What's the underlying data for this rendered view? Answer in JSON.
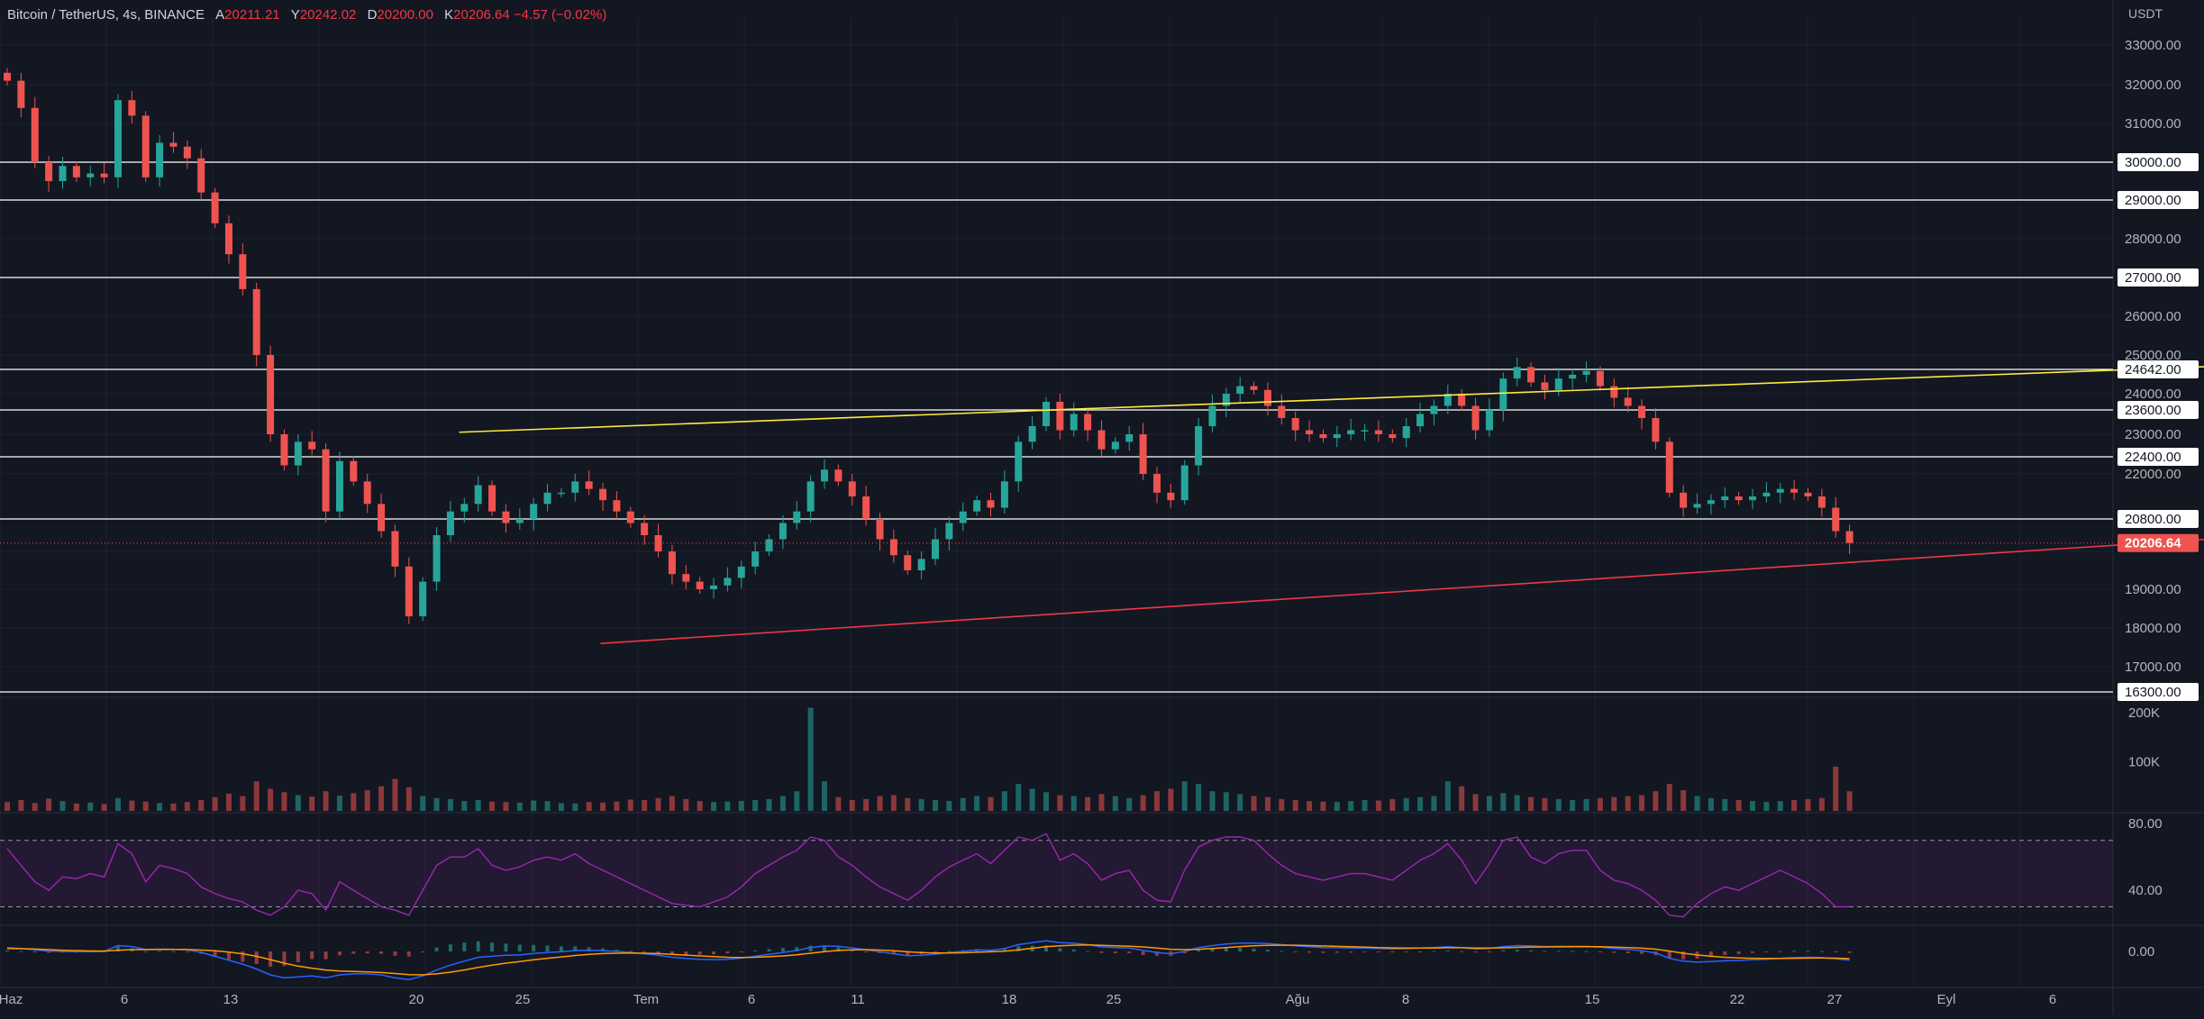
{
  "header": {
    "symbol": "Bitcoin / TetherUS, 4s, BINANCE",
    "open_label": "A",
    "open": "20211.21",
    "high_label": "Y",
    "high": "20242.02",
    "low_label": "D",
    "low": "20200.00",
    "close_label": "K",
    "close": "20206.64",
    "change": "−4.57 (−0.02%)"
  },
  "colors": {
    "background": "#131722",
    "grid": "#1e222d",
    "text": "#b2b5be",
    "up": "#26a69a",
    "down": "#ef5350",
    "resistance_line": "#ffeb3b",
    "support_line": "#f23645",
    "horizontal_level": "#ffffff",
    "rsi": "#9c27b0",
    "macd": "#2962ff",
    "signal": "#ff9800"
  },
  "chart_data": [
    {
      "type": "candlestick",
      "currency_label": "USDT",
      "y_ticks": [
        "33000.00",
        "32000.00",
        "31000.00",
        "30000.00",
        "29000.00",
        "28000.00",
        "27000.00",
        "26000.00",
        "25000.00",
        "24642.00",
        "24000.00",
        "23600.00",
        "23000.00",
        "22400.00",
        "22000.00",
        "20800.00",
        "20206.64",
        "19000.00",
        "18000.00",
        "17000.00",
        "16300.00"
      ],
      "ylim": [
        16300,
        33300
      ],
      "x_ticks": [
        "Haz",
        "6",
        "13",
        "20",
        "25",
        "Tem",
        "6",
        "11",
        "18",
        "25",
        "Ağu",
        "8",
        "15",
        "22",
        "27",
        "Eyl",
        "6"
      ],
      "horizontal_levels": [
        30000,
        29000,
        27000,
        24642,
        23600,
        22400,
        20800,
        16300
      ],
      "boxed_labels": [
        "30000.00",
        "29000.00",
        "27000.00",
        "24642.00",
        "23600.00",
        "22400.00",
        "20800.00",
        "16300.00"
      ],
      "last_price": {
        "value": 20206.64,
        "label": "20206.64"
      },
      "trendlines": [
        {
          "name": "resistance",
          "from": {
            "x": "14 Haz",
            "y": 23050
          },
          "to": {
            "x": "23 Ağu",
            "y": 25400
          }
        },
        {
          "name": "support",
          "from": {
            "x": "18 Haz",
            "y": 17600
          },
          "to": {
            "x": "31 Ağu",
            "y": 22000
          }
        }
      ],
      "series": [
        {
          "values": [
            32100,
            31400,
            30000,
            29500,
            29900,
            29600,
            29700,
            29600,
            31600,
            31200,
            29600,
            30500,
            30400,
            30100,
            29200,
            28400,
            27600,
            26700,
            25000,
            23000,
            22200,
            22800,
            22600,
            21000,
            22300,
            21800,
            21200,
            20500,
            19600,
            18300,
            19200,
            20400,
            21000,
            21200,
            21700,
            21000,
            20700,
            20800,
            21200,
            21500,
            21500,
            21800,
            21600,
            21300,
            21000,
            20700,
            20400,
            20000,
            19400,
            19200,
            19000,
            19100,
            19300,
            19600,
            20000,
            20300,
            20700,
            21000,
            21800,
            22100,
            21800,
            21400,
            20800,
            20300,
            19900,
            19500,
            19800,
            20300,
            20700,
            21000,
            21300,
            21100,
            21800,
            22800,
            23200,
            23800,
            23100,
            23500,
            23100,
            22600,
            22800,
            23000,
            22000,
            21500,
            21300,
            22200,
            23200,
            23700,
            24000,
            24200,
            24100,
            23700,
            23400,
            23100,
            23000,
            22900,
            23000,
            23100,
            23100,
            23000,
            22900,
            23200,
            23500,
            23700,
            24000,
            23700,
            23100,
            23600,
            24400,
            24700,
            24300,
            24100,
            24400,
            24500,
            24600,
            24200,
            23900,
            23700,
            23400,
            22800,
            21500,
            21100,
            21200,
            21300,
            21400,
            21300,
            21400,
            21500,
            21600,
            21500,
            21400,
            21100,
            20500,
            20206
          ]
        }
      ]
    },
    {
      "type": "bar",
      "name": "volume",
      "y_ticks": [
        "200K",
        "100K"
      ],
      "ylim": [
        0,
        220000
      ],
      "values": [
        18000,
        22000,
        16000,
        25000,
        20000,
        15000,
        17000,
        14000,
        26000,
        21000,
        19000,
        16000,
        15000,
        18000,
        22000,
        28000,
        35000,
        30000,
        60000,
        45000,
        38000,
        32000,
        29000,
        40000,
        31000,
        36000,
        42000,
        50000,
        65000,
        48000,
        30000,
        26000,
        24000,
        20000,
        22000,
        19000,
        18000,
        17000,
        21000,
        20000,
        16000,
        15000,
        18000,
        17000,
        19000,
        23000,
        22000,
        26000,
        30000,
        24000,
        20000,
        18000,
        19000,
        20000,
        22000,
        24000,
        30000,
        40000,
        210000,
        60000,
        28000,
        22000,
        24000,
        30000,
        32000,
        26000,
        24000,
        22000,
        20000,
        26000,
        30000,
        28000,
        40000,
        55000,
        45000,
        38000,
        32000,
        30000,
        28000,
        34000,
        30000,
        26000,
        32000,
        40000,
        45000,
        60000,
        55000,
        40000,
        38000,
        34000,
        30000,
        28000,
        24000,
        22000,
        20000,
        19000,
        18000,
        20000,
        22000,
        21000,
        24000,
        26000,
        28000,
        30000,
        60000,
        50000,
        34000,
        30000,
        36000,
        32000,
        28000,
        26000,
        24000,
        22000,
        24000,
        26000,
        28000,
        30000,
        32000,
        40000,
        55000,
        42000,
        30000,
        26000,
        24000,
        22000,
        20000,
        18000,
        20000,
        22000,
        24000,
        26000,
        90000,
        40000
      ]
    },
    {
      "type": "line",
      "name": "rsi",
      "y_ticks": [
        "80.00",
        "40.00"
      ],
      "ylim": [
        20,
        85
      ],
      "bands": [
        70,
        30
      ],
      "values": [
        65,
        55,
        45,
        40,
        48,
        47,
        50,
        48,
        68,
        62,
        45,
        55,
        53,
        50,
        42,
        38,
        35,
        33,
        28,
        25,
        30,
        40,
        38,
        28,
        45,
        40,
        35,
        30,
        28,
        25,
        40,
        55,
        60,
        60,
        65,
        55,
        52,
        54,
        58,
        60,
        58,
        62,
        56,
        52,
        48,
        44,
        40,
        36,
        32,
        31,
        30,
        33,
        36,
        42,
        50,
        55,
        60,
        64,
        72,
        70,
        60,
        55,
        48,
        42,
        38,
        34,
        40,
        48,
        54,
        58,
        62,
        56,
        64,
        72,
        70,
        74,
        58,
        62,
        56,
        46,
        50,
        52,
        40,
        34,
        33,
        52,
        66,
        70,
        72,
        72,
        70,
        62,
        55,
        50,
        48,
        46,
        48,
        50,
        50,
        48,
        46,
        52,
        58,
        62,
        68,
        58,
        44,
        56,
        70,
        72,
        60,
        56,
        62,
        64,
        64,
        52,
        46,
        44,
        40,
        34,
        25,
        24,
        32,
        38,
        42,
        40,
        44,
        48,
        52,
        48,
        44,
        38,
        30,
        30
      ]
    },
    {
      "type": "line",
      "name": "macd",
      "y_ticks": [
        "0.00"
      ],
      "ylim": [
        -1800,
        1200
      ],
      "series": [
        {
          "values": [
            200,
            150,
            80,
            20,
            0,
            -20,
            -10,
            0,
            300,
            250,
            100,
            120,
            110,
            80,
            -50,
            -250,
            -450,
            -650,
            -900,
            -1200,
            -1350,
            -1300,
            -1250,
            -1350,
            -1200,
            -1150,
            -1150,
            -1200,
            -1350,
            -1450,
            -1250,
            -950,
            -700,
            -500,
            -300,
            -250,
            -200,
            -180,
            -100,
            -50,
            -20,
            50,
            60,
            40,
            0,
            -50,
            -120,
            -200,
            -300,
            -360,
            -400,
            -420,
            -400,
            -340,
            -250,
            -150,
            -50,
            50,
            200,
            280,
            260,
            180,
            80,
            -20,
            -120,
            -220,
            -200,
            -140,
            -60,
            0,
            80,
            60,
            150,
            350,
            450,
            550,
            450,
            420,
            350,
            230,
            200,
            180,
            50,
            -50,
            -120,
            0,
            200,
            300,
            380,
            430,
            430,
            400,
            350,
            290,
            240,
            200,
            190,
            180,
            170,
            150,
            130,
            140,
            170,
            200,
            240,
            200,
            120,
            150,
            250,
            300,
            280,
            250,
            260,
            260,
            260,
            220,
            150,
            100,
            40,
            -80,
            -350,
            -500,
            -550,
            -520,
            -480,
            -460,
            -430,
            -400,
            -350,
            -320,
            -300,
            -320,
            -380,
            -450
          ]
        },
        {
          "values": [
            150,
            140,
            120,
            90,
            60,
            40,
            25,
            20,
            60,
            90,
            90,
            95,
            100,
            95,
            70,
            30,
            -30,
            -120,
            -250,
            -420,
            -600,
            -750,
            -860,
            -950,
            -1000,
            -1030,
            -1050,
            -1080,
            -1130,
            -1190,
            -1200,
            -1150,
            -1060,
            -950,
            -820,
            -700,
            -600,
            -520,
            -430,
            -350,
            -280,
            -210,
            -150,
            -110,
            -90,
            -80,
            -90,
            -110,
            -150,
            -190,
            -230,
            -270,
            -300,
            -310,
            -300,
            -270,
            -230,
            -170,
            -90,
            -10,
            50,
            80,
            90,
            70,
            30,
            -20,
            -60,
            -80,
            -80,
            -70,
            -40,
            -20,
            10,
            80,
            160,
            240,
            290,
            320,
            330,
            310,
            290,
            270,
            230,
            170,
            110,
            90,
            110,
            150,
            200,
            250,
            290,
            310,
            320,
            320,
            300,
            280,
            260,
            240,
            220,
            200,
            180,
            170,
            170,
            175,
            190,
            190,
            175,
            170,
            185,
            210,
            225,
            230,
            235,
            240,
            245,
            240,
            220,
            195,
            165,
            115,
            20,
            -90,
            -180,
            -250,
            -300,
            -330,
            -350,
            -360,
            -360,
            -350,
            -340,
            -335,
            -345,
            -370
          ]
        }
      ]
    }
  ]
}
